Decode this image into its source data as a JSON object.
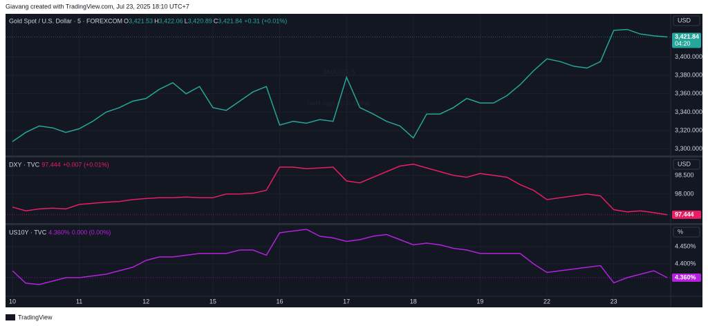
{
  "header": {
    "text": "Giavang created with TradingView.com, Jul 23, 2025 18:10 UTC+7"
  },
  "footer": {
    "brand": "TradingView"
  },
  "chart_data": {
    "type": "line",
    "grid": true,
    "categories": [
      "10",
      null,
      null,
      null,
      null,
      "11",
      null,
      null,
      null,
      null,
      "12",
      null,
      null,
      null,
      null,
      "15",
      null,
      null,
      null,
      null,
      "16",
      null,
      null,
      null,
      null,
      "17",
      null,
      null,
      null,
      null,
      "18",
      null,
      null,
      null,
      null,
      "19",
      null,
      null,
      null,
      null,
      "22",
      null,
      null,
      null,
      null,
      "23",
      null,
      null,
      null,
      null
    ],
    "panes": [
      {
        "title": "Gold Spot / U.S. Dollar · 5 · FOREXCOM",
        "watermark": "XAUUSD, 5",
        "watermark_sub": "Gold Spot / U.S. Dollar",
        "unit": "USD",
        "legend": [
          {
            "key": "O",
            "value": "3,421.53"
          },
          {
            "key": "H",
            "value": "3,422.06"
          },
          {
            "key": "L",
            "value": "3,420.89"
          },
          {
            "key": "C",
            "value": "3,421.84"
          }
        ],
        "change": "+0.31 (+0.01%)",
        "last_label": "3,421.84",
        "countdown": "04:20",
        "ylim": [
          3293,
          3447
        ],
        "yticks": [
          {
            "value": 3300,
            "label": "3,300.000"
          },
          {
            "value": 3320,
            "label": "3,320.000"
          },
          {
            "value": 3340,
            "label": "3,340.000"
          },
          {
            "value": 3360,
            "label": "3,360.000"
          },
          {
            "value": 3380,
            "label": "3,380.000"
          },
          {
            "value": 3400,
            "label": "3,400.000"
          }
        ],
        "series": [
          {
            "name": "XAUUSD",
            "color": "#26a69a",
            "values": [
              3308,
              3318,
              3325,
              3323,
              3318,
              3322,
              3330,
              3340,
              3345,
              3352,
              3355,
              3365,
              3372,
              3360,
              3368,
              3345,
              3342,
              3352,
              3362,
              3368,
              3326,
              3330,
              3328,
              3332,
              3330,
              3378,
              3345,
              3338,
              3330,
              3325,
              3312,
              3338,
              3338,
              3345,
              3355,
              3350,
              3350,
              3358,
              3370,
              3385,
              3398,
              3395,
              3390,
              3388,
              3395,
              3429,
              3430,
              3425,
              3423,
              3421.84
            ]
          }
        ]
      },
      {
        "title": "DXY · TVC",
        "unit": "USD",
        "legend": [
          {
            "value": "97.444"
          }
        ],
        "change": "+0.007 (+0.01%)",
        "last_label": "97.444",
        "ylim": [
          97.22,
          98.98
        ],
        "yticks": [
          {
            "value": 98,
            "label": "98.000"
          },
          {
            "value": 98.5,
            "label": "98.500"
          }
        ],
        "series": [
          {
            "name": "DXY",
            "color": "#e91e63",
            "values": [
              97.65,
              97.55,
              97.6,
              97.62,
              97.6,
              97.72,
              97.75,
              97.78,
              97.8,
              97.85,
              97.88,
              97.9,
              97.9,
              97.92,
              97.9,
              97.9,
              98.0,
              98.0,
              98.02,
              98.1,
              98.72,
              98.72,
              98.68,
              98.7,
              98.72,
              98.35,
              98.3,
              98.45,
              98.6,
              98.75,
              98.8,
              98.7,
              98.6,
              98.5,
              98.45,
              98.55,
              98.5,
              98.45,
              98.25,
              98.1,
              97.85,
              97.9,
              97.95,
              98.0,
              97.95,
              97.58,
              97.52,
              97.55,
              97.5,
              97.444
            ]
          }
        ]
      },
      {
        "title": "US10Y · TVC",
        "unit": "%",
        "legend": [
          {
            "value": "4.360%"
          }
        ],
        "change": "0.000 (0.00%)",
        "last_label": "4.360%",
        "ylim": [
          4.308,
          4.512
        ],
        "yticks": [
          {
            "value": 4.4,
            "label": "4.400%"
          },
          {
            "value": 4.45,
            "label": "4.450%"
          }
        ],
        "series": [
          {
            "name": "US10Y",
            "color": "#b620e0",
            "values": [
              4.38,
              4.344,
              4.34,
              4.35,
              4.36,
              4.36,
              4.365,
              4.37,
              4.38,
              4.39,
              4.41,
              4.42,
              4.42,
              4.425,
              4.43,
              4.43,
              4.43,
              4.44,
              4.44,
              4.425,
              4.49,
              4.495,
              4.5,
              4.48,
              4.475,
              4.465,
              4.47,
              4.48,
              4.485,
              4.47,
              4.455,
              4.46,
              4.455,
              4.445,
              4.44,
              4.43,
              4.43,
              4.43,
              4.43,
              4.4,
              4.375,
              4.38,
              4.385,
              4.39,
              4.395,
              4.345,
              4.36,
              4.37,
              4.38,
              4.36
            ]
          }
        ]
      }
    ]
  }
}
